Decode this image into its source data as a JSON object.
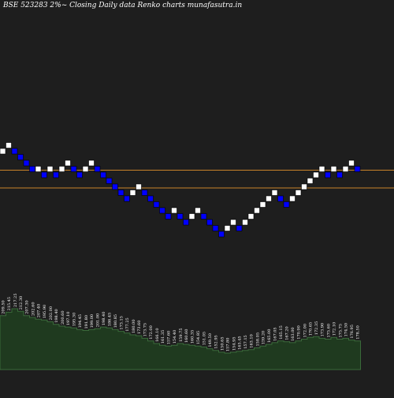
{
  "header": {
    "title": "BSE 523283 2%~  Closing Daily data  Renko  charts munafasutra.in"
  },
  "colors": {
    "background": "#1e1e1e",
    "up_brick": "#ffffff",
    "down_brick": "#0000ff",
    "level_line": "#c8822a",
    "volume_fill": "#1f3a1f",
    "volume_stroke": "#3a6a3a",
    "label": "#ffffff"
  },
  "chart_data": {
    "type": "renko",
    "bricks": [
      {
        "dir": "up",
        "level": 20
      },
      {
        "dir": "up",
        "level": 21
      },
      {
        "dir": "down",
        "level": 20
      },
      {
        "dir": "down",
        "level": 19
      },
      {
        "dir": "down",
        "level": 18
      },
      {
        "dir": "down",
        "level": 17
      },
      {
        "dir": "up",
        "level": 17
      },
      {
        "dir": "down",
        "level": 16
      },
      {
        "dir": "up",
        "level": 17
      },
      {
        "dir": "down",
        "level": 16
      },
      {
        "dir": "up",
        "level": 17
      },
      {
        "dir": "up",
        "level": 18
      },
      {
        "dir": "down",
        "level": 17
      },
      {
        "dir": "down",
        "level": 16
      },
      {
        "dir": "up",
        "level": 17
      },
      {
        "dir": "up",
        "level": 18
      },
      {
        "dir": "down",
        "level": 17
      },
      {
        "dir": "down",
        "level": 16
      },
      {
        "dir": "down",
        "level": 15
      },
      {
        "dir": "down",
        "level": 14
      },
      {
        "dir": "down",
        "level": 13
      },
      {
        "dir": "down",
        "level": 12
      },
      {
        "dir": "up",
        "level": 13
      },
      {
        "dir": "up",
        "level": 14
      },
      {
        "dir": "down",
        "level": 13
      },
      {
        "dir": "down",
        "level": 12
      },
      {
        "dir": "down",
        "level": 11
      },
      {
        "dir": "down",
        "level": 10
      },
      {
        "dir": "down",
        "level": 9
      },
      {
        "dir": "up",
        "level": 10
      },
      {
        "dir": "down",
        "level": 9
      },
      {
        "dir": "down",
        "level": 8
      },
      {
        "dir": "up",
        "level": 9
      },
      {
        "dir": "up",
        "level": 10
      },
      {
        "dir": "down",
        "level": 9
      },
      {
        "dir": "down",
        "level": 8
      },
      {
        "dir": "down",
        "level": 7
      },
      {
        "dir": "down",
        "level": 6
      },
      {
        "dir": "up",
        "level": 7
      },
      {
        "dir": "up",
        "level": 8
      },
      {
        "dir": "down",
        "level": 7
      },
      {
        "dir": "up",
        "level": 8
      },
      {
        "dir": "up",
        "level": 9
      },
      {
        "dir": "up",
        "level": 10
      },
      {
        "dir": "up",
        "level": 11
      },
      {
        "dir": "up",
        "level": 12
      },
      {
        "dir": "up",
        "level": 13
      },
      {
        "dir": "down",
        "level": 12
      },
      {
        "dir": "down",
        "level": 11
      },
      {
        "dir": "up",
        "level": 12
      },
      {
        "dir": "up",
        "level": 13
      },
      {
        "dir": "up",
        "level": 14
      },
      {
        "dir": "up",
        "level": 15
      },
      {
        "dir": "up",
        "level": 16
      },
      {
        "dir": "up",
        "level": 17
      },
      {
        "dir": "down",
        "level": 16
      },
      {
        "dir": "up",
        "level": 17
      },
      {
        "dir": "down",
        "level": 16
      },
      {
        "dir": "up",
        "level": 17
      },
      {
        "dir": "up",
        "level": 18
      },
      {
        "dir": "down",
        "level": 17
      }
    ],
    "horizontal_levels": [
      16.8,
      13.8
    ],
    "volume": {
      "values": [
        62,
        66,
        70,
        67,
        62,
        60,
        58,
        57,
        55,
        52,
        50,
        49,
        48,
        46,
        45,
        46,
        47,
        49,
        48,
        46,
        44,
        42,
        40,
        39,
        36,
        33,
        30,
        28,
        27,
        28,
        30,
        29,
        28,
        27,
        26,
        24,
        22,
        20,
        19,
        20,
        21,
        22,
        23,
        25,
        27,
        29,
        31,
        33,
        32,
        31,
        33,
        35,
        37,
        38,
        36,
        35,
        37,
        35,
        36,
        34,
        33
      ],
      "labels": [
        "209.50",
        "215.45",
        "217.25",
        "212.30",
        "207.30",
        "202.60",
        "207.40",
        "195.90",
        "202.00",
        "198.40",
        "200.60",
        "197.10",
        "195.30",
        "194.45",
        "191.80",
        "199.00",
        "201.00",
        "198.40",
        "186.45",
        "180.85",
        "173.15",
        "177.25",
        "180.00",
        "173.60",
        "173.75",
        "172.00",
        "166.10",
        "161.35",
        "157.60",
        "154.40",
        "159.75",
        "160.60",
        "160.35",
        "154.85",
        "151.05",
        "149.50",
        "152.95",
        "150.65",
        "157.80",
        "154.95",
        "165.45",
        "157.15",
        "163.10",
        "158.05",
        "159.20",
        "165.00",
        "167.05",
        "165.15",
        "167.20",
        "163.00",
        "170.90",
        "172.00",
        "170.65",
        "172.35",
        "173.90",
        "175.60",
        "172.10",
        "175.75",
        "174.50",
        "176.95",
        "178.50"
      ]
    }
  }
}
